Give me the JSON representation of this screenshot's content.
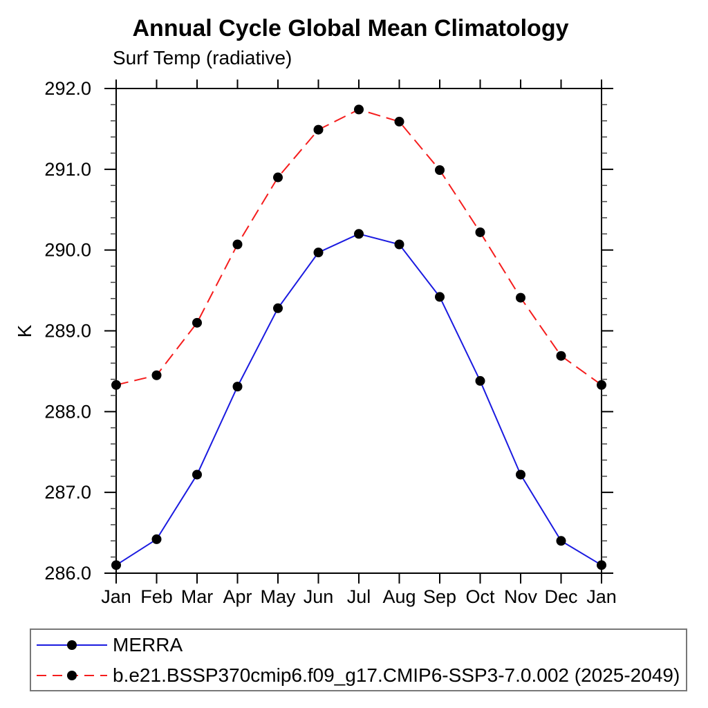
{
  "chart_data": {
    "type": "line",
    "title": "Annual Cycle Global Mean Climatology",
    "subtitle": "Surf Temp (radiative)",
    "ylabel": "K",
    "xlabel": "",
    "categories": [
      "Jan",
      "Feb",
      "Mar",
      "Apr",
      "May",
      "Jun",
      "Jul",
      "Aug",
      "Sep",
      "Oct",
      "Nov",
      "Dec",
      "Jan"
    ],
    "ylim": [
      286.0,
      292.0
    ],
    "ytick_major_step": 1.0,
    "ytick_minor_step": 0.2,
    "ytick_labels": [
      "286.0",
      "287.0",
      "288.0",
      "289.0",
      "290.0",
      "291.0",
      "292.0"
    ],
    "grid": false,
    "legend_position": "bottom",
    "axis_color": "#000000",
    "marker": {
      "shape": "circle",
      "color": "#000000",
      "radius": 7
    },
    "series": [
      {
        "name": "MERRA",
        "color": "#1a1ae0",
        "line_style": "solid",
        "values": [
          286.1,
          286.42,
          287.22,
          288.31,
          289.28,
          289.97,
          290.2,
          290.07,
          289.42,
          288.38,
          287.22,
          286.4,
          286.1
        ]
      },
      {
        "name": "b.e21.BSSP370cmip6.f09_g17.CMIP6-SSP3-7.0.002 (2025-2049)",
        "color": "#f51d1d",
        "line_style": "dashed",
        "values": [
          288.33,
          288.45,
          289.1,
          290.07,
          290.9,
          291.49,
          291.74,
          291.59,
          290.99,
          290.22,
          289.41,
          288.69,
          288.33
        ]
      }
    ]
  }
}
